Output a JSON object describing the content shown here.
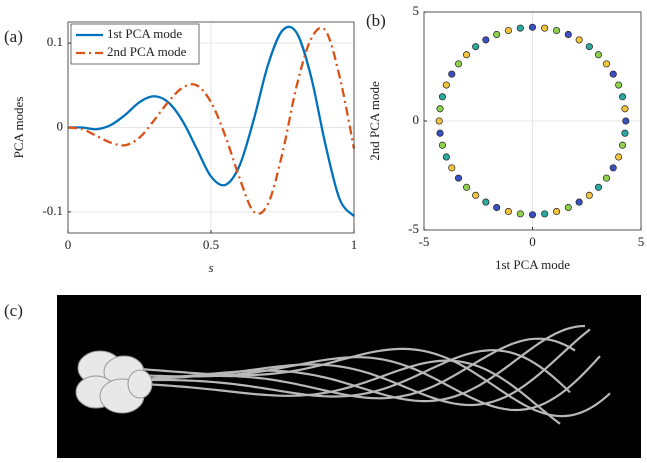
{
  "chart_data": [
    {
      "type": "line",
      "panel_label": "(a)",
      "xlabel": "s",
      "ylabel": "PCA modes",
      "x": [
        0,
        0.05,
        0.1,
        0.15,
        0.2,
        0.25,
        0.3,
        0.35,
        0.4,
        0.45,
        0.5,
        0.55,
        0.6,
        0.65,
        0.7,
        0.75,
        0.8,
        0.85,
        0.9,
        0.95,
        1
      ],
      "series": [
        {
          "name": "1st PCA mode",
          "color": "#0072bd",
          "dash": "solid",
          "values": [
            0,
            0,
            -0.002,
            0.003,
            0.015,
            0.03,
            0.037,
            0.03,
            0.008,
            -0.025,
            -0.058,
            -0.068,
            -0.045,
            0.01,
            0.075,
            0.115,
            0.112,
            0.06,
            -0.02,
            -0.085,
            -0.105
          ]
        },
        {
          "name": "2nd PCA mode",
          "color": "#d95319",
          "dash": "dashdot",
          "values": [
            0,
            -0.002,
            -0.01,
            -0.018,
            -0.021,
            -0.012,
            0.008,
            0.03,
            0.047,
            0.05,
            0.03,
            -0.01,
            -0.06,
            -0.1,
            -0.09,
            -0.03,
            0.05,
            0.105,
            0.115,
            0.06,
            -0.025
          ]
        }
      ],
      "xlim": [
        0,
        1
      ],
      "xticks": [
        0,
        0.5,
        1
      ],
      "ylim": [
        -0.125,
        0.125
      ],
      "yticks": [
        -0.1,
        0,
        0.1
      ],
      "grid": true,
      "legend": "top-left"
    },
    {
      "type": "scatter",
      "panel_label": "(b)",
      "xlabel": "1st PCA mode",
      "ylabel": "2nd PCA mode",
      "x": [
        4.3,
        4.26,
        4.15,
        3.97,
        3.72,
        3.41,
        3.04,
        2.62,
        2.15,
        1.65,
        1.11,
        0.56,
        0,
        -0.56,
        -1.11,
        -1.65,
        -2.15,
        -2.62,
        -3.04,
        -3.41,
        -3.72,
        -3.97,
        -4.15,
        -4.26,
        -4.3,
        -4.26,
        -4.15,
        -3.97,
        -3.72,
        -3.41,
        -3.04,
        -2.62,
        -2.15,
        -1.65,
        -1.11,
        -0.56,
        0,
        0.56,
        1.11,
        1.65,
        2.15,
        2.62,
        3.04,
        3.41,
        3.72,
        3.97,
        4.15,
        4.26
      ],
      "y": [
        0,
        0.56,
        1.11,
        1.65,
        2.15,
        2.62,
        3.04,
        3.41,
        3.72,
        3.97,
        4.15,
        4.26,
        4.3,
        4.26,
        4.15,
        3.97,
        3.72,
        3.41,
        3.04,
        2.62,
        2.15,
        1.65,
        1.11,
        0.56,
        0,
        -0.56,
        -1.11,
        -1.65,
        -2.15,
        -2.62,
        -3.04,
        -3.41,
        -3.72,
        -3.97,
        -4.15,
        -4.26,
        -4.3,
        -4.26,
        -4.15,
        -3.97,
        -3.72,
        -3.41,
        -3.04,
        -2.62,
        -2.15,
        -1.65,
        -1.11,
        -0.56
      ],
      "colors": [
        "#3a4fc4",
        "#f2c43d",
        "#2ba8a0",
        "#8fd14f",
        "#3a4fc4",
        "#f2c43d",
        "#8fd14f",
        "#2ba8a0",
        "#f2c43d",
        "#3a4fc4",
        "#8fd14f",
        "#f2c43d",
        "#3a4fc4",
        "#2ba8a0",
        "#f2c43d",
        "#8fd14f",
        "#3a4fc4",
        "#2ba8a0",
        "#f2c43d",
        "#8fd14f",
        "#3a4fc4",
        "#f2c43d",
        "#2ba8a0",
        "#8fd14f",
        "#f2c43d",
        "#3a4fc4",
        "#8fd14f",
        "#2ba8a0",
        "#f2c43d",
        "#3a4fc4",
        "#8fd14f",
        "#f2c43d",
        "#2ba8a0",
        "#3a4fc4",
        "#f2c43d",
        "#8fd14f",
        "#3a4fc4",
        "#2ba8a0",
        "#f2c43d",
        "#8fd14f",
        "#3a4fc4",
        "#f2c43d",
        "#2ba8a0",
        "#8fd14f",
        "#3a4fc4",
        "#f2c43d",
        "#8fd14f",
        "#2ba8a0"
      ],
      "xlim": [
        -5,
        5
      ],
      "xticks": [
        -5,
        0,
        5
      ],
      "ylim": [
        -5,
        5
      ],
      "yticks": [
        -5,
        0,
        5
      ],
      "grid": true
    }
  ],
  "image": {
    "panel_label": "(c)"
  }
}
